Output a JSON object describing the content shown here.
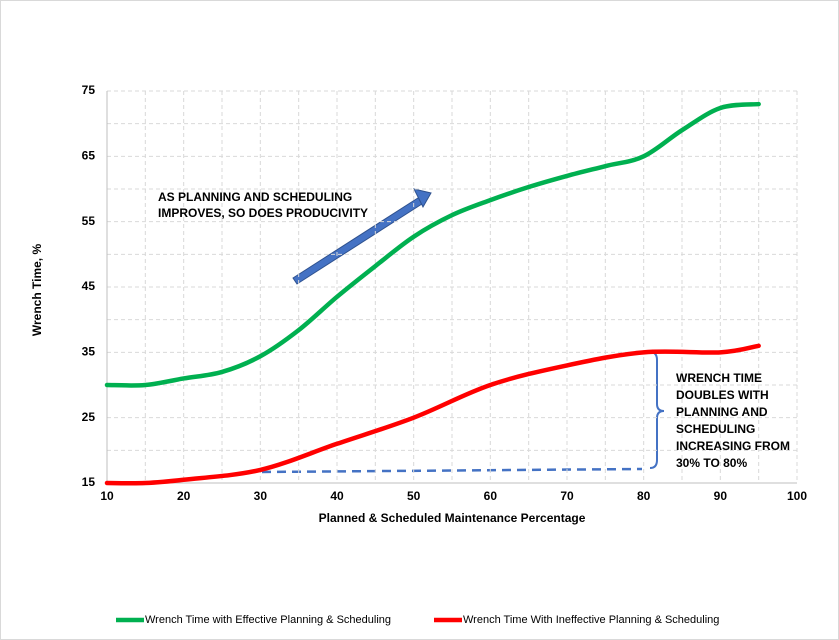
{
  "chart_data": {
    "type": "line",
    "y_label": "Wrench Time, %",
    "x_label": "Planned & Scheduled Maintenance Percentage",
    "xlim": [
      10,
      100
    ],
    "xticks": [
      10,
      20,
      30,
      40,
      50,
      60,
      70,
      80,
      90,
      100
    ],
    "minor_xticks": [
      15,
      25,
      35,
      45,
      55,
      65,
      75,
      85,
      95
    ],
    "ylim": [
      15,
      75
    ],
    "yticks": [
      15,
      25,
      35,
      45,
      55,
      65,
      75
    ],
    "minor_yticks": [
      20,
      30,
      40,
      50,
      60,
      70
    ],
    "grid": true,
    "smooth": true,
    "legend": "bottom",
    "series": [
      {
        "name": "Wrench Time with Effective Planning & Scheduling",
        "color": "#00b050",
        "x": [
          10,
          15,
          20,
          25,
          30,
          35,
          40,
          45,
          50,
          55,
          60,
          65,
          70,
          75,
          80,
          85,
          90,
          95
        ],
        "values": [
          30,
          30,
          31,
          32,
          34.4,
          38.4,
          43.5,
          48.2,
          52.7,
          56,
          58.3,
          60.3,
          62,
          63.5,
          65,
          69,
          72.4,
          73
        ]
      },
      {
        "name": "Wrench Time With Ineffective Planning & Scheduling",
        "color": "#ff0000",
        "x": [
          10,
          15,
          20,
          30,
          40,
          50,
          60,
          70,
          80,
          90,
          95
        ],
        "values": [
          15,
          15,
          15.5,
          17,
          21,
          25,
          30,
          33,
          35,
          35,
          36
        ]
      }
    ],
    "annotations": [
      {
        "lines": [
          "AS PLANNING AND SCHEDULING",
          "IMPROVES, SO DOES PRODUCIVITY"
        ]
      },
      {
        "lines": [
          "WRENCH TIME",
          "DOUBLES WITH",
          "PLANNING AND",
          "SCHEDULING",
          "INCREASING FROM",
          "30% TO 80%"
        ]
      }
    ]
  }
}
